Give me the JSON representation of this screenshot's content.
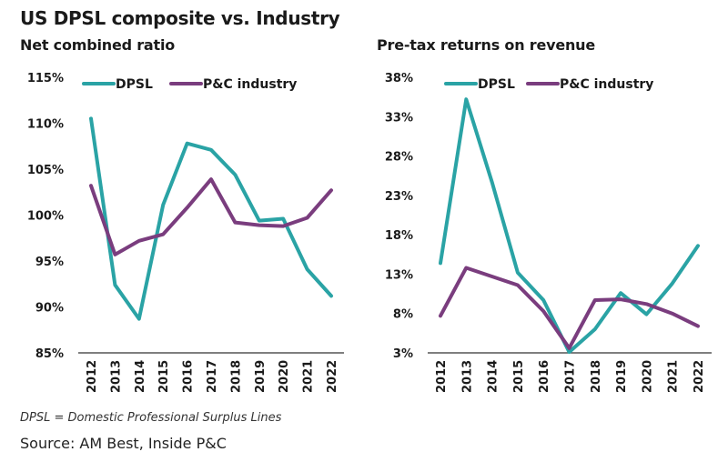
{
  "title": "US DPSL composite vs. Industry",
  "footnote": "DPSL = Domestic Professional Surplus Lines",
  "source": "Source: AM Best, Inside P&C",
  "colors": {
    "dpsl": "#2AA3A5",
    "industry": "#7A3D7E",
    "axis": "#333333"
  },
  "chart_data": [
    {
      "type": "line",
      "title": "Net combined ratio",
      "xlabel": "",
      "ylabel": "",
      "categories": [
        "2012",
        "2013",
        "2014",
        "2015",
        "2016",
        "2017",
        "2018",
        "2019",
        "2020",
        "2021",
        "2022"
      ],
      "y_ticks": [
        85,
        90,
        95,
        100,
        105,
        110,
        115
      ],
      "y_tick_labels": [
        "85%",
        "90%",
        "95%",
        "100%",
        "105%",
        "110%",
        "115%"
      ],
      "ylim": [
        85,
        115
      ],
      "grid": false,
      "legend_position": "top",
      "series": [
        {
          "name": "DPSL",
          "values": [
            110.5,
            92.4,
            88.7,
            101.1,
            107.8,
            107.1,
            104.4,
            99.4,
            99.6,
            94.1,
            91.2
          ]
        },
        {
          "name": "P&C industry",
          "values": [
            103.2,
            95.7,
            97.2,
            97.9,
            100.8,
            103.9,
            99.2,
            98.9,
            98.8,
            99.7,
            102.7
          ]
        }
      ]
    },
    {
      "type": "line",
      "title": "Pre-tax returns on revenue",
      "xlabel": "",
      "ylabel": "",
      "categories": [
        "2012",
        "2013",
        "2014",
        "2015",
        "2016",
        "2017",
        "2018",
        "2019",
        "2020",
        "2021",
        "2022"
      ],
      "y_ticks": [
        3,
        8,
        13,
        18,
        23,
        28,
        33,
        38
      ],
      "y_tick_labels": [
        "3%",
        "8%",
        "13%",
        "18%",
        "23%",
        "28%",
        "33%",
        "38%"
      ],
      "ylim": [
        3,
        38
      ],
      "grid": false,
      "legend_position": "top",
      "series": [
        {
          "name": "DPSL",
          "values": [
            14.4,
            35.2,
            24.7,
            13.2,
            9.7,
            3.1,
            6.0,
            10.6,
            7.9,
            11.8,
            16.6
          ]
        },
        {
          "name": "P&C industry",
          "values": [
            7.7,
            13.8,
            12.7,
            11.6,
            8.3,
            3.6,
            9.7,
            9.8,
            9.2,
            8.0,
            6.4
          ]
        }
      ]
    }
  ]
}
